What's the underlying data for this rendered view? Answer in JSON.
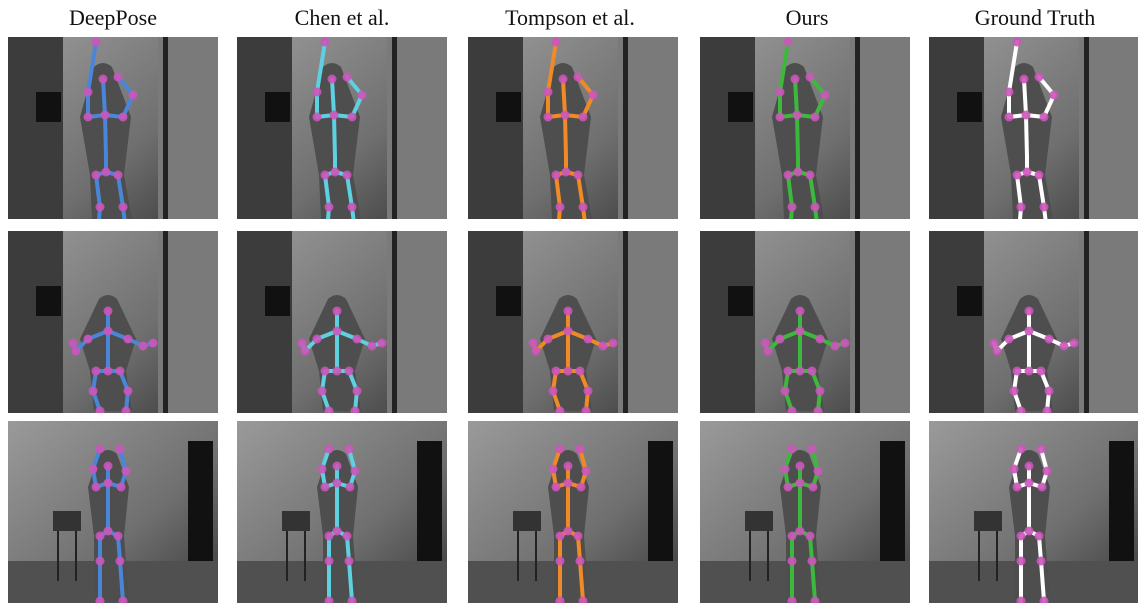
{
  "columns": [
    {
      "title": "DeepPose",
      "color": "#4a86d8"
    },
    {
      "title": "Chen et al.",
      "color": "#5fd0e0"
    },
    {
      "title": "Tompson et al.",
      "color": "#f08a26"
    },
    {
      "title": "Ours",
      "color": "#3db83d"
    },
    {
      "title": "Ground Truth",
      "color": "#ffffff"
    }
  ],
  "joint_color": "#cc55bb",
  "rows": [
    {
      "pose": "arms-raised-one-hand-on-head",
      "scene": "corridor"
    },
    {
      "pose": "squatting-arms-forward",
      "scene": "corridor"
    },
    {
      "pose": "both-hands-on-head",
      "scene": "room-with-chair"
    }
  ]
}
